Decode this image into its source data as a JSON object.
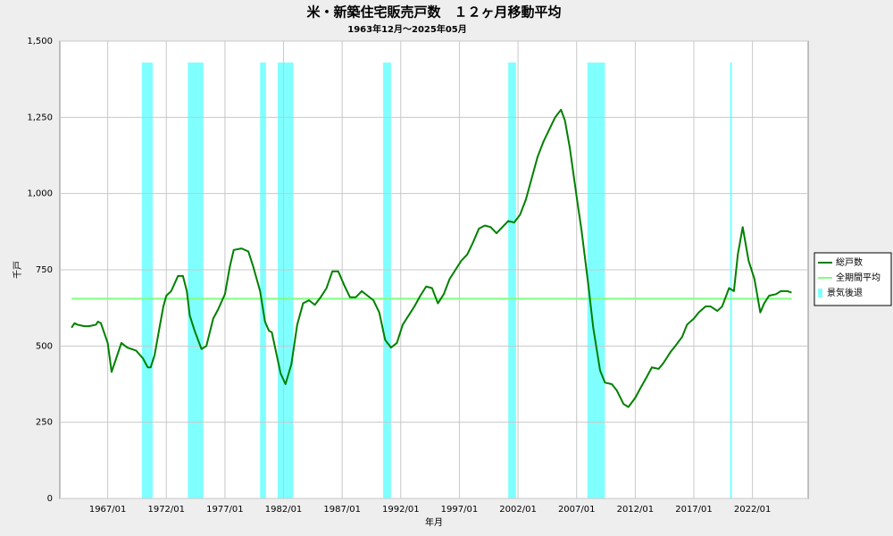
{
  "chart_data": {
    "type": "line",
    "title": "米・新築住宅販売戸数　１２ヶ月移動平均",
    "subtitle": "1963年12月～2025年05月",
    "x_label": "年月",
    "y_label": "千戸",
    "x": [
      "1963/12",
      "1964/03",
      "1964/06",
      "1965/01",
      "1965/06",
      "1966/01",
      "1966/03",
      "1966/06",
      "1967/01",
      "1967/05",
      "1968/03",
      "1968/09",
      "1969/06",
      "1970/01",
      "1970/06",
      "1970/09",
      "1971/01",
      "1971/06",
      "1971/10",
      "1972/01",
      "1972/06",
      "1973/01",
      "1973/06",
      "1973/10",
      "1974/01",
      "1974/06",
      "1975/01",
      "1975/06",
      "1976/01",
      "1976/06",
      "1977/01",
      "1977/06",
      "1977/10",
      "1978/06",
      "1979/01",
      "1979/06",
      "1980/01",
      "1980/06",
      "1980/10",
      "1981/01",
      "1981/06",
      "1981/10",
      "1982/03",
      "1982/09",
      "1983/03",
      "1983/09",
      "1984/03",
      "1984/09",
      "1985/03",
      "1985/09",
      "1986/03",
      "1986/09",
      "1987/03",
      "1987/09",
      "1988/03",
      "1988/09",
      "1989/03",
      "1989/09",
      "1990/03",
      "1990/09",
      "1991/03",
      "1991/09",
      "1992/03",
      "1992/09",
      "1993/03",
      "1993/09",
      "1994/03",
      "1994/09",
      "1995/03",
      "1995/09",
      "1996/03",
      "1996/09",
      "1997/03",
      "1997/09",
      "1998/03",
      "1998/09",
      "1999/03",
      "1999/09",
      "2000/03",
      "2000/09",
      "2001/03",
      "2001/09",
      "2002/03",
      "2002/09",
      "2003/03",
      "2003/09",
      "2004/03",
      "2004/09",
      "2005/03",
      "2005/09",
      "2006/01",
      "2006/06",
      "2007/01",
      "2007/06",
      "2008/01",
      "2008/06",
      "2009/01",
      "2009/06",
      "2010/01",
      "2010/06",
      "2011/01",
      "2011/06",
      "2012/01",
      "2012/06",
      "2013/01",
      "2013/06",
      "2014/01",
      "2014/06",
      "2015/01",
      "2015/06",
      "2016/01",
      "2016/06",
      "2017/01",
      "2017/06",
      "2018/01",
      "2018/06",
      "2019/01",
      "2019/06",
      "2020/01",
      "2020/06",
      "2020/10",
      "2021/03",
      "2021/09",
      "2022/03",
      "2022/09",
      "2023/01",
      "2023/06",
      "2024/01",
      "2024/06",
      "2025/01",
      "2025/05"
    ],
    "series": [
      {
        "name": "総戸数",
        "color": "#008000",
        "values": [
          560,
          575,
          570,
          565,
          565,
          570,
          580,
          575,
          510,
          415,
          510,
          495,
          485,
          460,
          430,
          430,
          470,
          560,
          630,
          665,
          680,
          730,
          730,
          680,
          600,
          550,
          490,
          500,
          590,
          620,
          670,
          760,
          815,
          820,
          810,
          760,
          680,
          580,
          550,
          545,
          470,
          410,
          375,
          440,
          570,
          640,
          650,
          635,
          660,
          690,
          745,
          745,
          700,
          660,
          660,
          680,
          665,
          650,
          610,
          520,
          495,
          510,
          570,
          600,
          630,
          665,
          695,
          690,
          640,
          670,
          720,
          750,
          780,
          800,
          840,
          885,
          895,
          890,
          870,
          890,
          910,
          905,
          930,
          980,
          1050,
          1120,
          1170,
          1210,
          1250,
          1275,
          1240,
          1150,
          990,
          880,
          700,
          560,
          420,
          380,
          375,
          355,
          310,
          300,
          330,
          360,
          400,
          430,
          425,
          445,
          480,
          500,
          530,
          570,
          590,
          610,
          630,
          630,
          615,
          630,
          690,
          680,
          800,
          890,
          780,
          720,
          610,
          640,
          665,
          670,
          680,
          680,
          675
        ]
      }
    ],
    "average": {
      "name": "全期間平均",
      "color": "#80ff80",
      "value": 655
    },
    "recessions": {
      "name": "景気後退",
      "color": "#80ffff",
      "periods": [
        [
          "1969/12",
          "1970/11"
        ],
        [
          "1973/11",
          "1975/03"
        ],
        [
          "1980/01",
          "1980/07"
        ],
        [
          "1981/07",
          "1982/11"
        ],
        [
          "1990/07",
          "1991/03"
        ],
        [
          "2001/03",
          "2001/11"
        ],
        [
          "2007/12",
          "2009/06"
        ],
        [
          "2020/02",
          "2020/04"
        ]
      ]
    },
    "xlim": [
      "1962/12",
      "2026/10"
    ],
    "xticks": [
      "1967/01",
      "1972/01",
      "1977/01",
      "1982/01",
      "1987/01",
      "1992/01",
      "1997/01",
      "2002/01",
      "2007/01",
      "2012/01",
      "2017/01",
      "2022/01"
    ],
    "ylim": [
      0,
      1500
    ],
    "yticks": [
      0,
      250,
      500,
      750,
      {
        "value": 1000,
        "label": "1,000"
      },
      {
        "value": 1250,
        "label": "1,250"
      },
      {
        "value": 1500,
        "label": "1,500"
      }
    ],
    "grid": true
  }
}
